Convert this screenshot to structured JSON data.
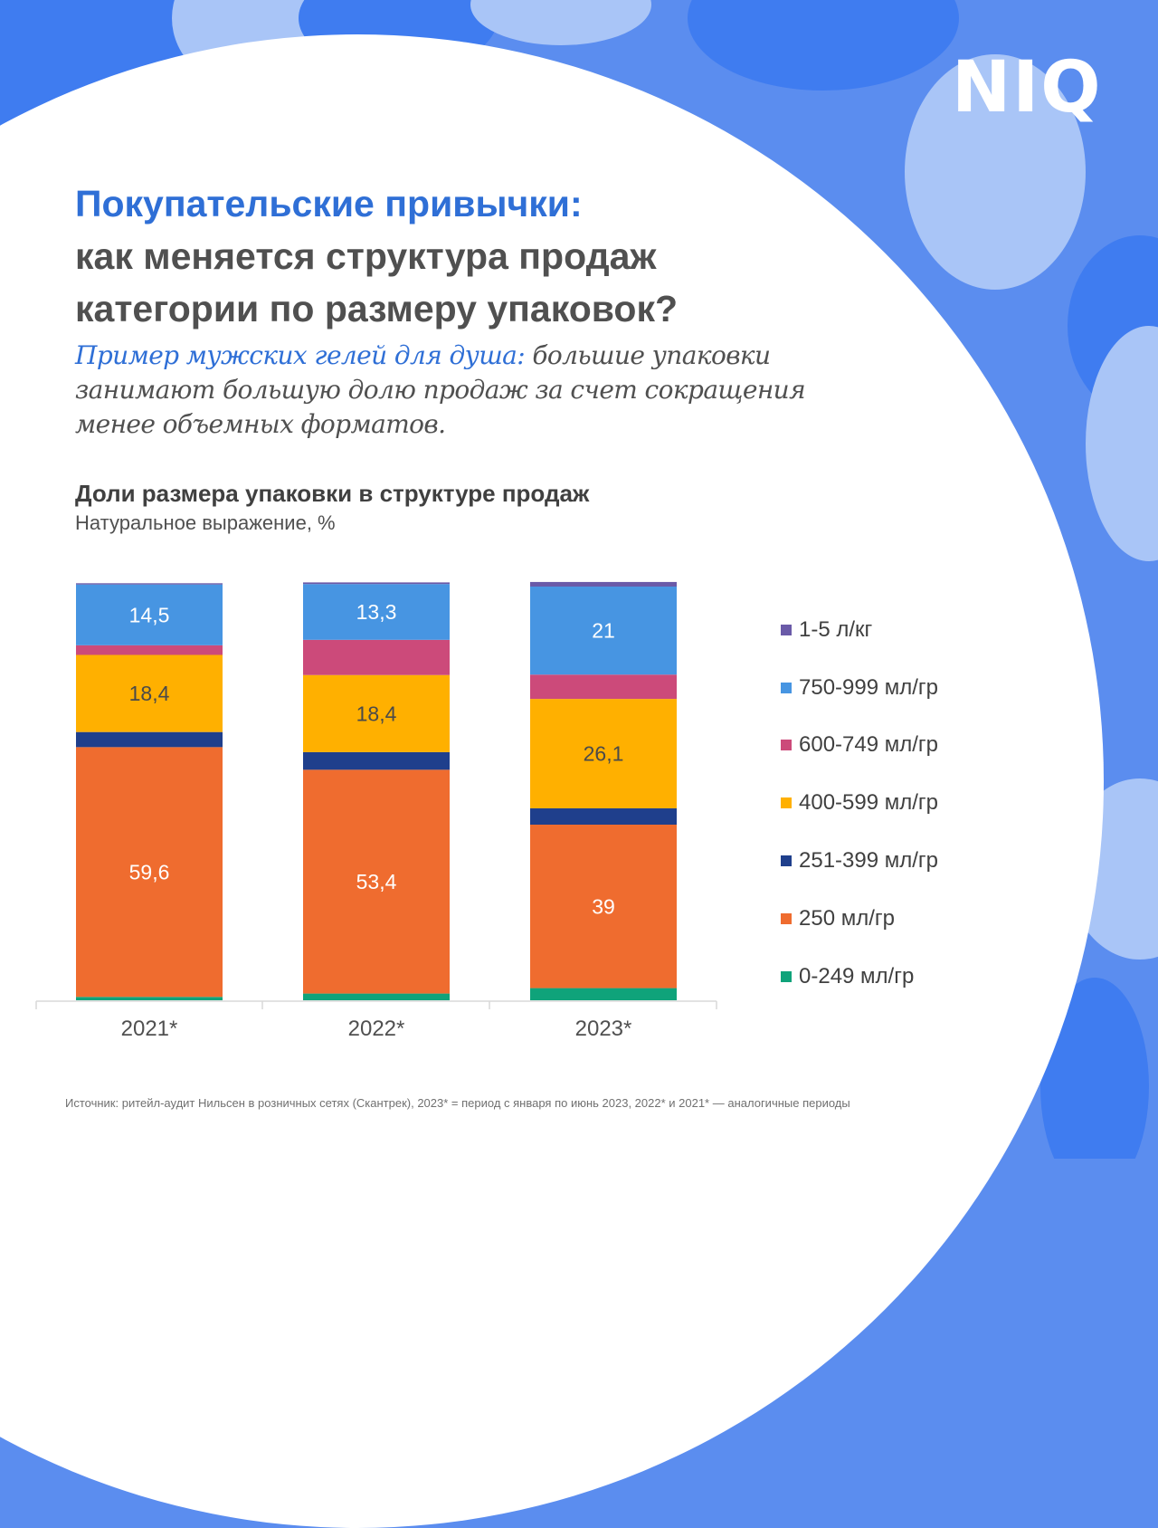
{
  "brand": {
    "logo_text": "NIQ",
    "accent": "#2f6fd6",
    "background": "#5b8def"
  },
  "header": {
    "title_line1": "Покупательские привычки:",
    "title_line2": "как меняется структура продаж",
    "title_line3": "категории по размеру упаковок?"
  },
  "intro": {
    "lead": "Пример мужских гелей для душа:",
    "text": " большие упаковки занимают большую долю продаж за счет сокращения менее объемных форматов."
  },
  "chart_data": {
    "type": "bar",
    "stacked": true,
    "title": "Доли размера упаковки в структуре продаж",
    "subtitle": "Натуральное выражение, %",
    "xlabel": "",
    "ylabel": "",
    "ylim": [
      0,
      100
    ],
    "grid": false,
    "legend_position": "right",
    "categories": [
      "2021*",
      "2022*",
      "2023*"
    ],
    "series": [
      {
        "name": "0-249 мл/гр",
        "color": "#0fa37a",
        "values": [
          0.8,
          1.6,
          2.9
        ],
        "labels": [
          null,
          null,
          null
        ]
      },
      {
        "name": "250 мл/гр",
        "color": "#ef6c2f",
        "values": [
          59.6,
          53.4,
          39
        ],
        "labels": [
          "59,6",
          "53,4",
          "39"
        ],
        "label_color": "#ffffff"
      },
      {
        "name": "251-399 мл/гр",
        "color": "#1f3f8c",
        "values": [
          3.6,
          4.2,
          3.9
        ],
        "labels": [
          null,
          null,
          null
        ]
      },
      {
        "name": "400-599 мл/гр",
        "color": "#ffb000",
        "values": [
          18.4,
          18.4,
          26.1
        ],
        "labels": [
          "18,4",
          "18,4",
          "26,1"
        ],
        "label_color": "#4a4a4a"
      },
      {
        "name": "600-749 мл/гр",
        "color": "#cc4a7a",
        "values": [
          2.3,
          8.4,
          5.8
        ],
        "labels": [
          null,
          null,
          null
        ]
      },
      {
        "name": "750-999 мл/гр",
        "color": "#4795e2",
        "values": [
          14.5,
          13.3,
          21
        ],
        "labels": [
          "14,5",
          "13,3",
          "21"
        ],
        "label_color": "#ffffff"
      },
      {
        "name": "1-5 л/кг",
        "color": "#6a5aa8",
        "values": [
          0.3,
          0.4,
          1.1
        ],
        "labels": [
          null,
          null,
          null
        ]
      }
    ],
    "legend": [
      "1-5 л/кг",
      "750-999 мл/гр",
      "600-749 мл/гр",
      "400-599 мл/гр",
      "251-399 мл/гр",
      "250 мл/гр",
      "0-249 мл/гр"
    ]
  },
  "footer": {
    "source": "Источник: ритейл-аудит Нильсен в розничных сетях (Скантрек), 2023* = период с января по июнь 2023, 2022* и 2021* — аналогичные периоды"
  }
}
